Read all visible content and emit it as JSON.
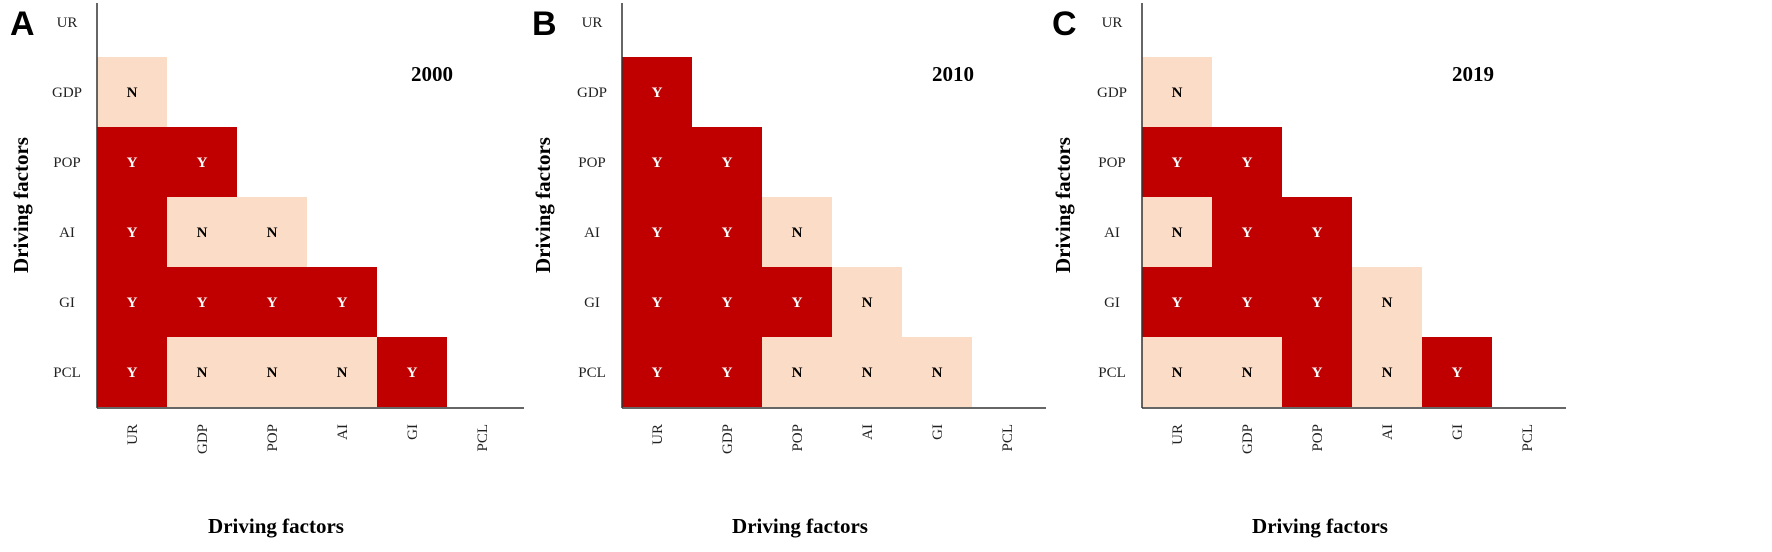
{
  "chart_data": [
    {
      "type": "heatmap",
      "panel": "A",
      "title": "2000",
      "xlabel": "Driving factors",
      "ylabel": "Driving factors",
      "x_categories": [
        "UR",
        "GDP",
        "POP",
        "AI",
        "GI",
        "PCL"
      ],
      "y_categories": [
        "UR",
        "GDP",
        "POP",
        "AI",
        "GI",
        "PCL"
      ],
      "cells": [
        [
          "",
          "",
          "",
          "",
          "",
          ""
        ],
        [
          "N",
          "",
          "",
          "",
          "",
          ""
        ],
        [
          "Y",
          "Y",
          "",
          "",
          "",
          ""
        ],
        [
          "Y",
          "N",
          "N",
          "",
          "",
          ""
        ],
        [
          "Y",
          "Y",
          "Y",
          "Y",
          "",
          ""
        ],
        [
          "Y",
          "N",
          "N",
          "N",
          "Y",
          ""
        ]
      ]
    },
    {
      "type": "heatmap",
      "panel": "B",
      "title": "2010",
      "xlabel": "Driving factors",
      "ylabel": "Driving factors",
      "x_categories": [
        "UR",
        "GDP",
        "POP",
        "AI",
        "GI",
        "PCL"
      ],
      "y_categories": [
        "UR",
        "GDP",
        "POP",
        "AI",
        "GI",
        "PCL"
      ],
      "cells": [
        [
          "",
          "",
          "",
          "",
          "",
          ""
        ],
        [
          "Y",
          "",
          "",
          "",
          "",
          ""
        ],
        [
          "Y",
          "Y",
          "",
          "",
          "",
          ""
        ],
        [
          "Y",
          "Y",
          "N",
          "",
          "",
          ""
        ],
        [
          "Y",
          "Y",
          "Y",
          "N",
          "",
          ""
        ],
        [
          "Y",
          "Y",
          "N",
          "N",
          "N",
          ""
        ]
      ]
    },
    {
      "type": "heatmap",
      "panel": "C",
      "title": "2019",
      "xlabel": "Driving factors",
      "ylabel": "Driving factors",
      "x_categories": [
        "UR",
        "GDP",
        "POP",
        "AI",
        "GI",
        "PCL"
      ],
      "y_categories": [
        "UR",
        "GDP",
        "POP",
        "AI",
        "GI",
        "PCL"
      ],
      "cells": [
        [
          "",
          "",
          "",
          "",
          "",
          ""
        ],
        [
          "N",
          "",
          "",
          "",
          "",
          ""
        ],
        [
          "Y",
          "Y",
          "",
          "",
          "",
          ""
        ],
        [
          "N",
          "Y",
          "Y",
          "",
          "",
          ""
        ],
        [
          "Y",
          "Y",
          "Y",
          "N",
          "",
          ""
        ],
        [
          "N",
          "N",
          "Y",
          "N",
          "Y",
          ""
        ]
      ]
    }
  ],
  "colors": {
    "Y_fill": "#c00000",
    "N_fill": "#fbdcc6",
    "Y_text": "#ffffff",
    "N_text": "#000000",
    "axis": "#333333"
  }
}
